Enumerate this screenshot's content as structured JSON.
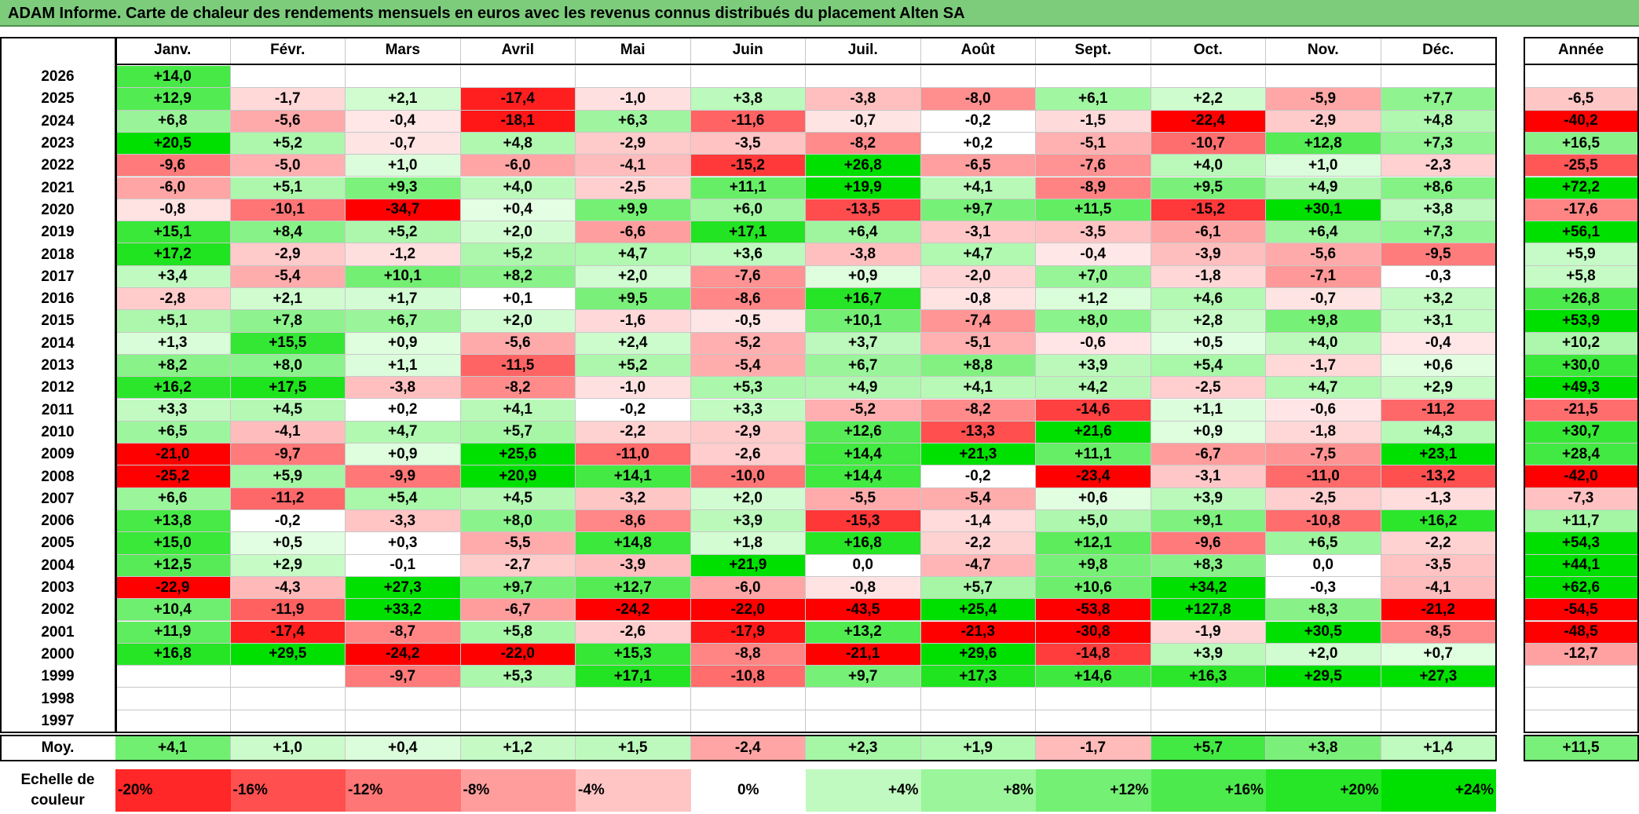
{
  "title": "ADAM Informe. Carte de chaleur des rendements mensuels en euros avec les revenus connus distribués du placement Alten SA",
  "chart_data": {
    "type": "heatmap",
    "title": "ADAM Informe. Carte de chaleur des rendements mensuels en euros avec les revenus connus distribués du placement Alten SA",
    "months": [
      "Janv.",
      "Févr.",
      "Mars",
      "Avril",
      "Mai",
      "Juin",
      "Juil.",
      "Août",
      "Sept.",
      "Oct.",
      "Nov.",
      "Déc."
    ],
    "year_header": "Année",
    "rows": [
      {
        "year": "2026",
        "months": [
          "+14,0",
          "",
          "",
          "",
          "",
          "",
          "",
          "",
          "",
          "",
          "",
          ""
        ],
        "annual": ""
      },
      {
        "year": "2025",
        "months": [
          "+12,9",
          "-1,7",
          "+2,1",
          "-17,4",
          "-1,0",
          "+3,8",
          "-3,8",
          "-8,0",
          "+6,1",
          "+2,2",
          "-5,9",
          "+7,7"
        ],
        "annual": "-6,5"
      },
      {
        "year": "2024",
        "months": [
          "+6,8",
          "-5,6",
          "-0,4",
          "-18,1",
          "+6,3",
          "-11,6",
          "-0,7",
          "-0,2",
          "-1,5",
          "-22,4",
          "-2,9",
          "+4,8"
        ],
        "annual": "-40,2"
      },
      {
        "year": "2023",
        "months": [
          "+20,5",
          "+5,2",
          "-0,7",
          "+4,8",
          "-2,9",
          "-3,5",
          "-8,2",
          "+0,2",
          "-5,1",
          "-10,7",
          "+12,8",
          "+7,3"
        ],
        "annual": "+16,5"
      },
      {
        "year": "2022",
        "months": [
          "-9,6",
          "-5,0",
          "+1,0",
          "-6,0",
          "-4,1",
          "-15,2",
          "+26,8",
          "-6,5",
          "-7,6",
          "+4,0",
          "+1,0",
          "-2,3"
        ],
        "annual": "-25,5"
      },
      {
        "year": "2021",
        "months": [
          "-6,0",
          "+5,1",
          "+9,3",
          "+4,0",
          "-2,5",
          "+11,1",
          "+19,9",
          "+4,1",
          "-8,9",
          "+9,5",
          "+4,9",
          "+8,6"
        ],
        "annual": "+72,2"
      },
      {
        "year": "2020",
        "months": [
          "-0,8",
          "-10,1",
          "-34,7",
          "+0,4",
          "+9,9",
          "+6,0",
          "-13,5",
          "+9,7",
          "+11,5",
          "-15,2",
          "+30,1",
          "+3,8"
        ],
        "annual": "-17,6"
      },
      {
        "year": "2019",
        "months": [
          "+15,1",
          "+8,4",
          "+5,2",
          "+2,0",
          "-6,6",
          "+17,1",
          "+6,4",
          "-3,1",
          "-3,5",
          "-6,1",
          "+6,4",
          "+7,3"
        ],
        "annual": "+56,1"
      },
      {
        "year": "2018",
        "months": [
          "+17,2",
          "-2,9",
          "-1,2",
          "+5,2",
          "+4,7",
          "+3,6",
          "-3,8",
          "+4,7",
          "-0,4",
          "-3,9",
          "-5,6",
          "-9,5"
        ],
        "annual": "+5,9"
      },
      {
        "year": "2017",
        "months": [
          "+3,4",
          "-5,4",
          "+10,1",
          "+8,2",
          "+2,0",
          "-7,6",
          "+0,9",
          "-2,0",
          "+7,0",
          "-1,8",
          "-7,1",
          "-0,3"
        ],
        "annual": "+5,8"
      },
      {
        "year": "2016",
        "months": [
          "-2,8",
          "+2,1",
          "+1,7",
          "+0,1",
          "+9,5",
          "-8,6",
          "+16,7",
          "-0,8",
          "+1,2",
          "+4,6",
          "-0,7",
          "+3,2"
        ],
        "annual": "+26,8"
      },
      {
        "year": "2015",
        "months": [
          "+5,1",
          "+7,8",
          "+6,7",
          "+2,0",
          "-1,6",
          "-0,5",
          "+10,1",
          "-7,4",
          "+8,0",
          "+2,8",
          "+9,8",
          "+3,1"
        ],
        "annual": "+53,9"
      },
      {
        "year": "2014",
        "months": [
          "+1,3",
          "+15,5",
          "+0,9",
          "-5,6",
          "+2,4",
          "-5,2",
          "+3,7",
          "-5,1",
          "-0,6",
          "+0,5",
          "+4,0",
          "-0,4"
        ],
        "annual": "+10,2"
      },
      {
        "year": "2013",
        "months": [
          "+8,2",
          "+8,0",
          "+1,1",
          "-11,5",
          "+5,2",
          "-5,4",
          "+6,7",
          "+8,8",
          "+3,9",
          "+5,4",
          "-1,7",
          "+0,6"
        ],
        "annual": "+30,0"
      },
      {
        "year": "2012",
        "months": [
          "+16,2",
          "+17,5",
          "-3,8",
          "-8,2",
          "-1,0",
          "+5,3",
          "+4,9",
          "+4,1",
          "+4,2",
          "-2,5",
          "+4,7",
          "+2,9"
        ],
        "annual": "+49,3"
      },
      {
        "year": "2011",
        "months": [
          "+3,3",
          "+4,5",
          "+0,2",
          "+4,1",
          "-0,2",
          "+3,3",
          "-5,2",
          "-8,2",
          "-14,6",
          "+1,1",
          "-0,6",
          "-11,2"
        ],
        "annual": "-21,5"
      },
      {
        "year": "2010",
        "months": [
          "+6,5",
          "-4,1",
          "+4,7",
          "+5,7",
          "-2,2",
          "-2,9",
          "+12,6",
          "-13,3",
          "+21,6",
          "+0,9",
          "-1,8",
          "+4,3"
        ],
        "annual": "+30,7"
      },
      {
        "year": "2009",
        "months": [
          "-21,0",
          "-9,7",
          "+0,9",
          "+25,6",
          "-11,0",
          "-2,6",
          "+14,4",
          "+21,3",
          "+11,1",
          "-6,7",
          "-7,5",
          "+23,1"
        ],
        "annual": "+28,4"
      },
      {
        "year": "2008",
        "months": [
          "-25,2",
          "+5,9",
          "-9,9",
          "+20,9",
          "+14,1",
          "-10,0",
          "+14,4",
          "-0,2",
          "-23,4",
          "-3,1",
          "-11,0",
          "-13,2"
        ],
        "annual": "-42,0"
      },
      {
        "year": "2007",
        "months": [
          "+6,6",
          "-11,2",
          "+5,4",
          "+4,5",
          "-3,2",
          "+2,0",
          "-5,5",
          "-5,4",
          "+0,6",
          "+3,9",
          "-2,5",
          "-1,3"
        ],
        "annual": "-7,3"
      },
      {
        "year": "2006",
        "months": [
          "+13,8",
          "-0,2",
          "-3,3",
          "+8,0",
          "-8,6",
          "+3,9",
          "-15,3",
          "-1,4",
          "+5,0",
          "+9,1",
          "-10,8",
          "+16,2"
        ],
        "annual": "+11,7"
      },
      {
        "year": "2005",
        "months": [
          "+15,0",
          "+0,5",
          "+0,3",
          "-5,5",
          "+14,8",
          "+1,8",
          "+16,8",
          "-2,2",
          "+12,1",
          "-9,6",
          "+6,5",
          "-2,2"
        ],
        "annual": "+54,3"
      },
      {
        "year": "2004",
        "months": [
          "+12,5",
          "+2,9",
          "-0,1",
          "-2,7",
          "-3,9",
          "+21,9",
          "0,0",
          "-4,7",
          "+9,8",
          "+8,3",
          "0,0",
          "-3,5"
        ],
        "annual": "+44,1"
      },
      {
        "year": "2003",
        "months": [
          "-22,9",
          "-4,3",
          "+27,3",
          "+9,7",
          "+12,7",
          "-6,0",
          "-0,8",
          "+5,7",
          "+10,6",
          "+34,2",
          "-0,3",
          "-4,1"
        ],
        "annual": "+62,6"
      },
      {
        "year": "2002",
        "months": [
          "+10,4",
          "-11,9",
          "+33,2",
          "-6,7",
          "-24,2",
          "-22,0",
          "-43,5",
          "+25,4",
          "-53,8",
          "+127,8",
          "+8,3",
          "-21,2"
        ],
        "annual": "-54,5"
      },
      {
        "year": "2001",
        "months": [
          "+11,9",
          "-17,4",
          "-8,7",
          "+5,8",
          "-2,6",
          "-17,9",
          "+13,2",
          "-21,3",
          "-30,8",
          "-1,9",
          "+30,5",
          "-8,5"
        ],
        "annual": "-48,5"
      },
      {
        "year": "2000",
        "months": [
          "+16,8",
          "+29,5",
          "-24,2",
          "-22,0",
          "+15,3",
          "-8,8",
          "-21,1",
          "+29,6",
          "-14,8",
          "+3,9",
          "+2,0",
          "+0,7"
        ],
        "annual": "-12,7"
      },
      {
        "year": "1999",
        "months": [
          "",
          "",
          "-9,7",
          "+5,3",
          "+17,1",
          "-10,8",
          "+9,7",
          "+17,3",
          "+14,6",
          "+16,3",
          "+29,5",
          "+27,3"
        ],
        "annual": ""
      },
      {
        "year": "1998",
        "months": [
          "",
          "",
          "",
          "",
          "",
          "",
          "",
          "",
          "",
          "",
          "",
          ""
        ],
        "annual": ""
      },
      {
        "year": "1997",
        "months": [
          "",
          "",
          "",
          "",
          "",
          "",
          "",
          "",
          "",
          "",
          "",
          ""
        ],
        "annual": ""
      }
    ],
    "average": {
      "label": "Moy.",
      "months": [
        "+4,1",
        "+1,0",
        "+0,4",
        "+1,2",
        "+1,5",
        "-2,4",
        "+2,3",
        "+1,9",
        "-1,7",
        "+5,7",
        "+3,8",
        "+1,4"
      ],
      "annual": "+11,5"
    },
    "scale": {
      "label": "Echelle de couleur",
      "steps": [
        {
          "text": "-20%",
          "value": -20
        },
        {
          "text": "-16%",
          "value": -16
        },
        {
          "text": "-12%",
          "value": -12
        },
        {
          "text": "-8%",
          "value": -8
        },
        {
          "text": "-4%",
          "value": -4
        },
        {
          "text": "0%",
          "value": 0
        },
        {
          "text": "+4%",
          "value": 4
        },
        {
          "text": "+8%",
          "value": 8
        },
        {
          "text": "+12%",
          "value": 12
        },
        {
          "text": "+16%",
          "value": 16
        },
        {
          "text": "+20%",
          "value": 20
        },
        {
          "text": "+24%",
          "value": 24
        }
      ]
    },
    "colors": {
      "negative_max": "#ff0000",
      "neutral": "#ffffff",
      "positive_max": "#00e000",
      "title_background": "#7ccc7c"
    }
  }
}
